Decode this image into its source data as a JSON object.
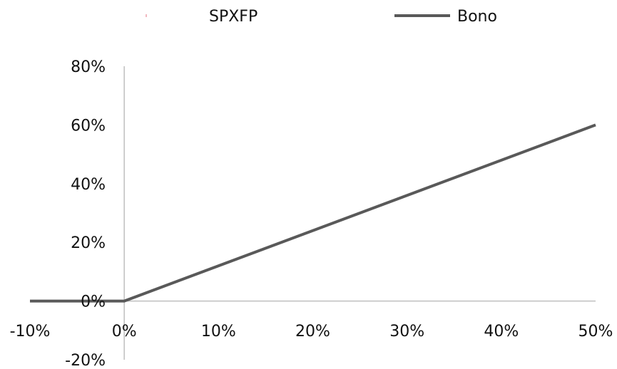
{
  "chart_data": {
    "type": "line",
    "title": "",
    "xlabel": "",
    "ylabel": "",
    "xlim": [
      -0.1,
      0.5
    ],
    "ylim": [
      -0.2,
      0.8
    ],
    "x_ticks": [
      -0.1,
      0.0,
      0.1,
      0.2,
      0.3,
      0.4,
      0.5
    ],
    "x_tick_labels": [
      "-10%",
      "0%",
      "10%",
      "20%",
      "30%",
      "40%",
      "50%"
    ],
    "y_ticks": [
      -0.2,
      0.0,
      0.2,
      0.4,
      0.6,
      0.8
    ],
    "y_tick_labels": [
      "-20%",
      "0%",
      "20%",
      "40%",
      "60%",
      "80%"
    ],
    "grid": false,
    "legend_position": "top",
    "series": [
      {
        "name": "SPXFP",
        "color": "#f2b8c0",
        "x": [],
        "y": []
      },
      {
        "name": "Bono",
        "color": "#595959",
        "x": [
          -0.1,
          0.0,
          0.5
        ],
        "y": [
          0.0,
          0.0,
          0.6
        ]
      }
    ]
  }
}
